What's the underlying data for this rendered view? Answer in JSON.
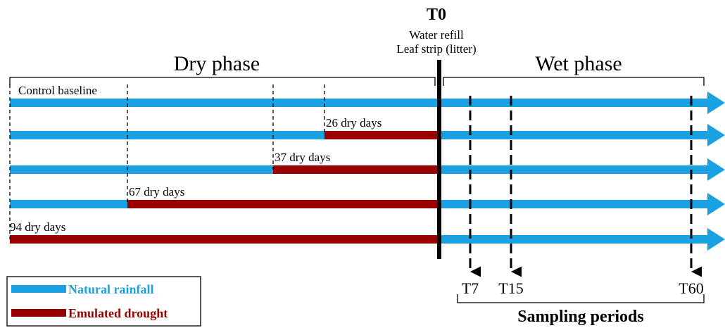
{
  "header": {
    "event": "T0",
    "event_notes": [
      "Water refill",
      "Leaf strip (litter)"
    ]
  },
  "phases": {
    "dry": "Dry phase",
    "wet": "Wet phase"
  },
  "rows": [
    "Control baseline",
    "26 dry days",
    "37 dry days",
    "67 dry days",
    "94 dry days"
  ],
  "sampling": {
    "points": [
      "T7",
      "T15",
      "T60"
    ],
    "label": "Sampling periods"
  },
  "legend": [
    "Natural rainfall",
    "Emulated drought"
  ]
}
